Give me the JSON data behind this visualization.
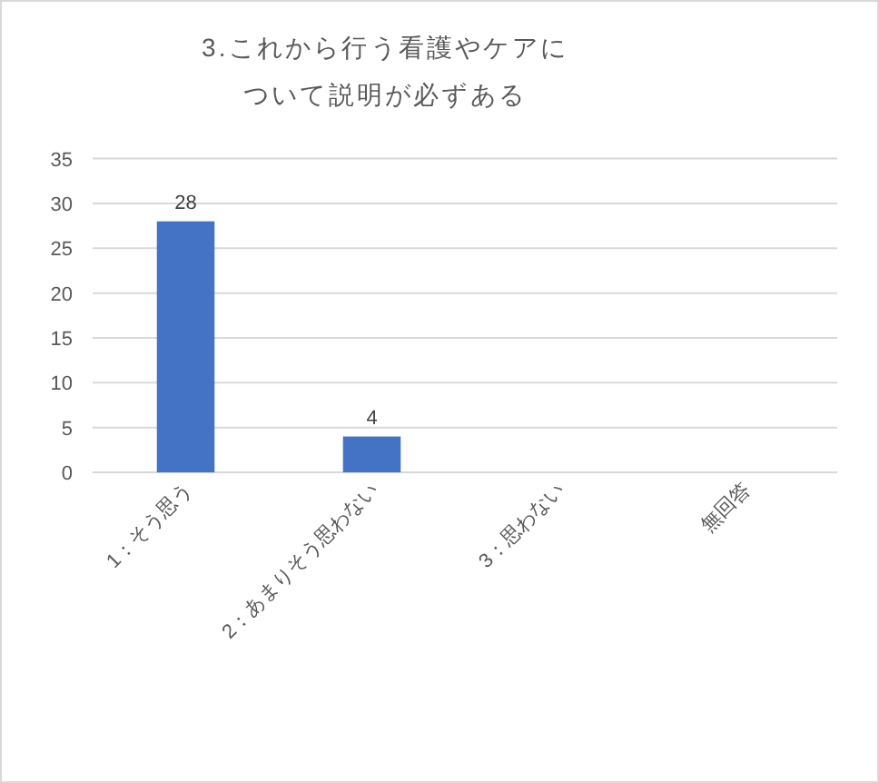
{
  "chart_data": {
    "type": "bar",
    "title": "3.これから行う看護やケアについて説明が必ずある",
    "categories": [
      "1：そう思う",
      "2：あまりそう思わない",
      "3：思わない",
      "無回答"
    ],
    "values": [
      28,
      4,
      0,
      0
    ],
    "value_labels": [
      "28",
      "4",
      null,
      null
    ],
    "color": "#4472c4",
    "ylim": [
      0,
      35
    ],
    "yticks": [
      0,
      5,
      10,
      15,
      20,
      25,
      30,
      35
    ],
    "grid": "y"
  }
}
